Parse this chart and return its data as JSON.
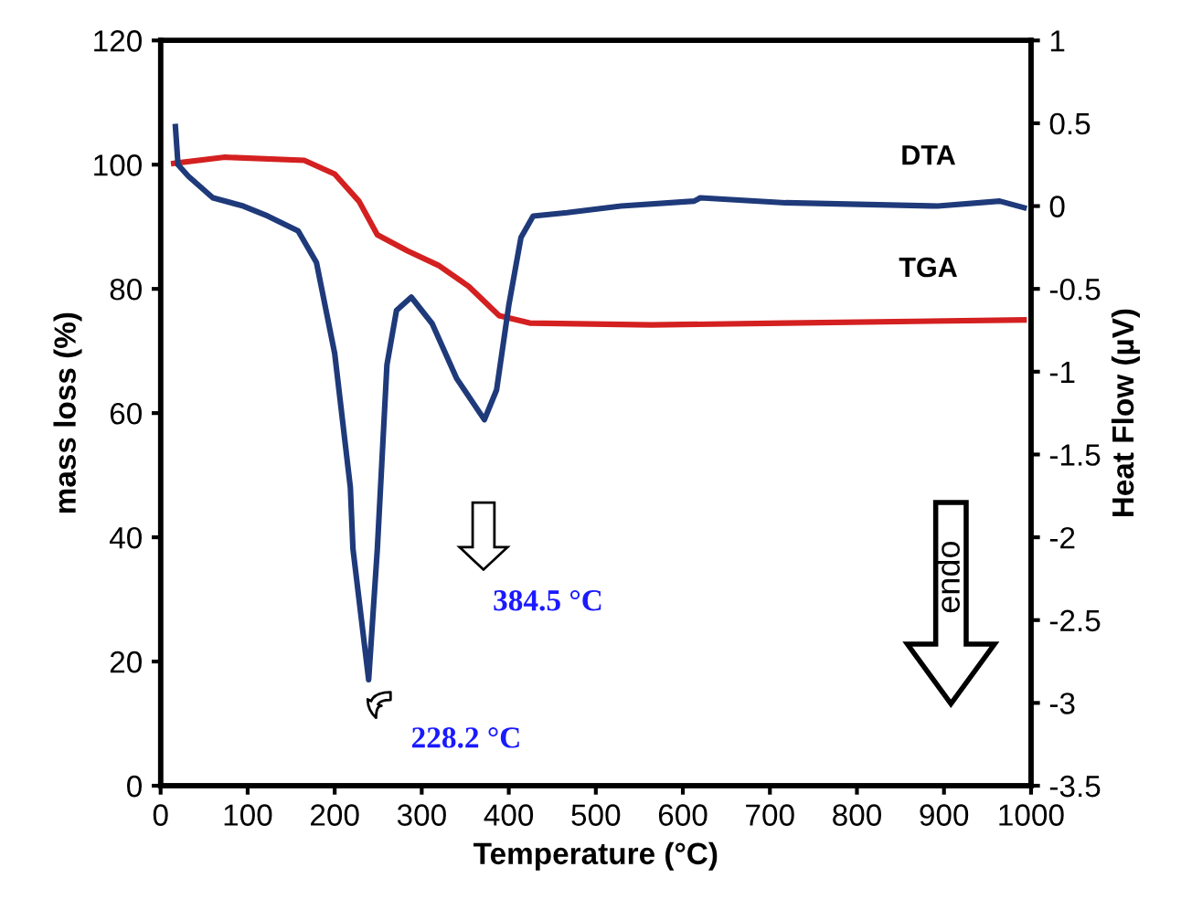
{
  "chart_data": {
    "type": "line",
    "xlabel": "Temperature (°C)",
    "ylabel": "mass loss (%)",
    "y2label": "Heat Flow (µV)",
    "xlim": [
      0,
      1000
    ],
    "xticks": [
      0,
      100,
      200,
      300,
      400,
      500,
      600,
      700,
      800,
      900,
      1000
    ],
    "ylim": [
      0,
      120
    ],
    "yticks": [
      0,
      20,
      40,
      60,
      80,
      100,
      120
    ],
    "y2lim": [
      -3.5,
      1
    ],
    "y2ticks": [
      -3.5,
      -3,
      -2.5,
      -2,
      -1.5,
      -1,
      -0.5,
      0,
      0.5,
      1
    ],
    "grid": false,
    "legend": false,
    "marker": "none",
    "line_style": "solid",
    "series": [
      {
        "name": "TGA",
        "color": "#d42020",
        "x": [
          15,
          74,
          165,
          200,
          228,
          249,
          284,
          319,
          354,
          389,
          424,
          564,
          718,
          992
        ],
        "values": [
          100.2,
          101.2,
          100.7,
          98.5,
          94.1,
          88.7,
          86.1,
          83.8,
          80.4,
          75.7,
          74.5,
          74.2,
          74.5,
          75.0
        ]
      },
      {
        "name": "DTA",
        "color": "#1f3a7a",
        "axis": "y2",
        "x": [
          17,
          20,
          32,
          60,
          95,
          123,
          158,
          179,
          200,
          218,
          221,
          239,
          249,
          260,
          271,
          288,
          312,
          340,
          372,
          386,
          400,
          414,
          428,
          467,
          529,
          613,
          620,
          718,
          893,
          964,
          992
        ],
        "values": [
          0.48,
          0.25,
          0.18,
          0.05,
          0.0,
          -0.06,
          -0.15,
          -0.34,
          -0.89,
          -1.7,
          -2.07,
          -2.86,
          -2.07,
          -0.96,
          -0.63,
          -0.55,
          -0.71,
          -1.04,
          -1.29,
          -1.11,
          -0.6,
          -0.19,
          -0.06,
          -0.04,
          0.0,
          0.03,
          0.05,
          0.02,
          0.0,
          0.03,
          -0.01
        ]
      }
    ],
    "annotations": [
      "384.5 °C",
      "228.2 °C",
      "endo"
    ]
  }
}
